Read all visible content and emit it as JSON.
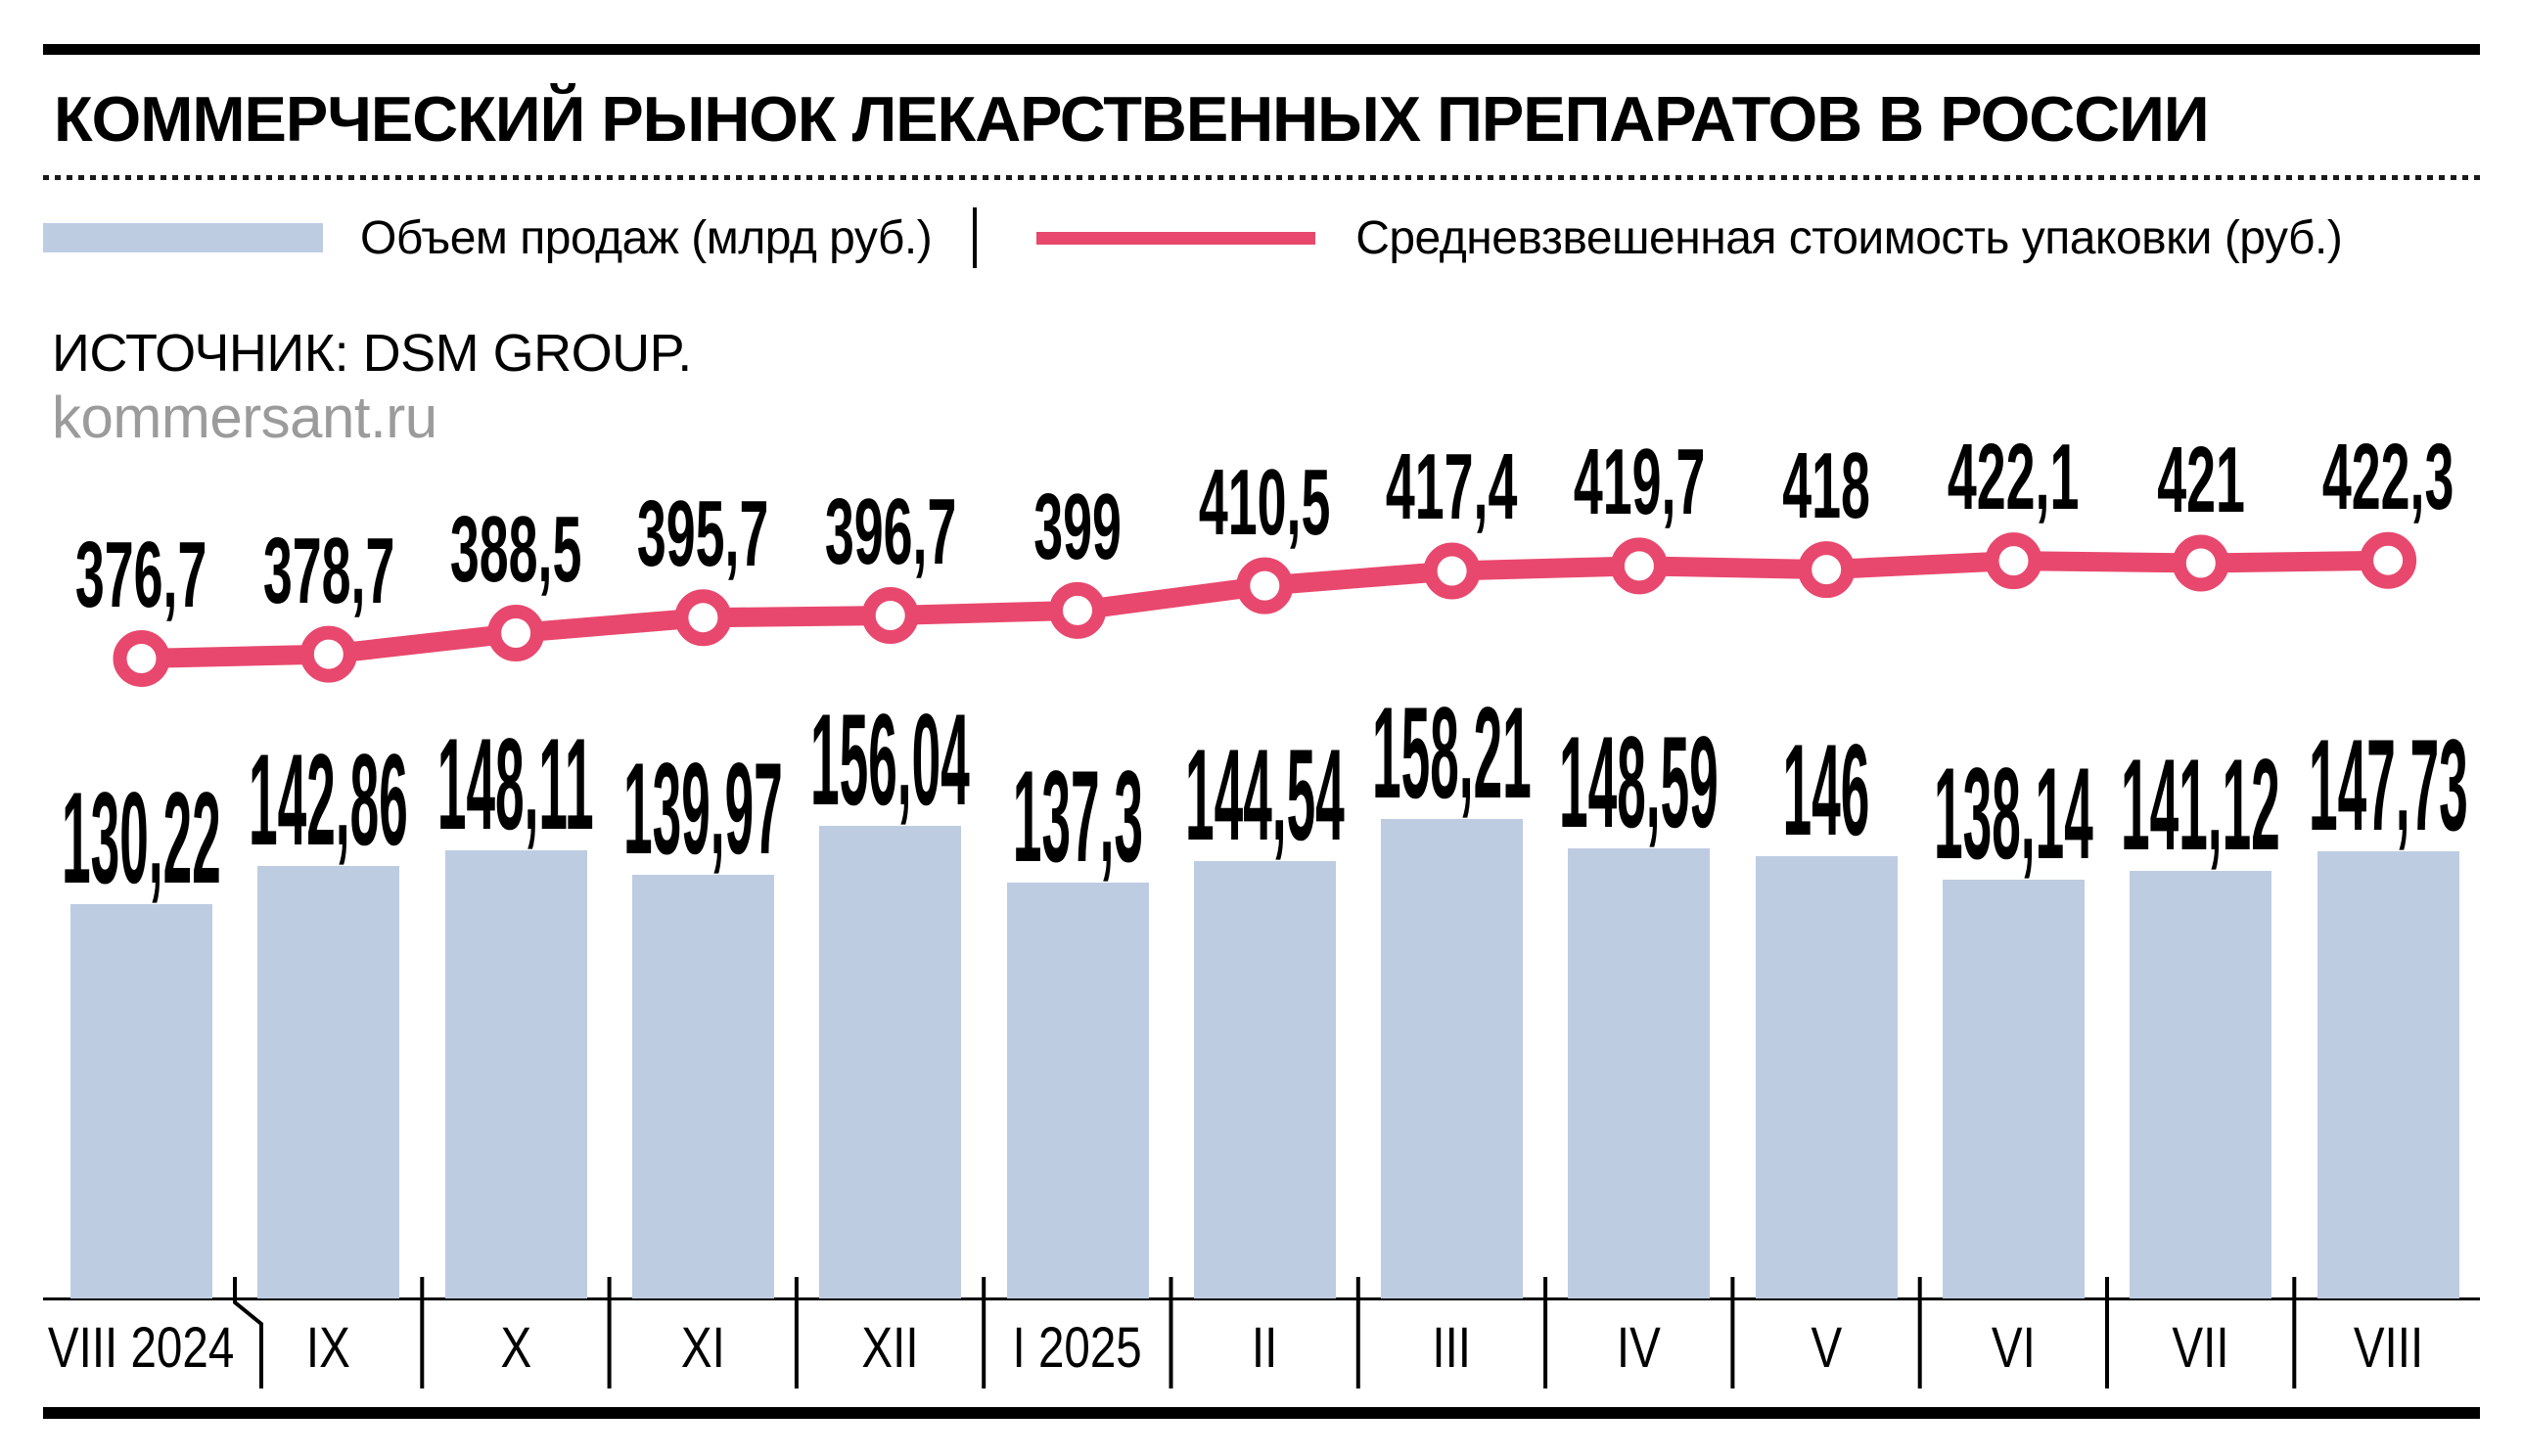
{
  "page": {
    "title": "КОММЕРЧЕСКИЙ РЫНОК ЛЕКАРСТВЕННЫХ ПРЕПАРАТОВ В РОССИИ",
    "source": "ИСТОЧНИК: DSM GROUP.",
    "site": "kommersant.ru",
    "legend_separator": "|",
    "colors": {
      "bar": "#BECCE2",
      "line": "#E8486D",
      "text": "#000000",
      "muted": "#9B9B9B"
    }
  },
  "chart_data": {
    "type": "bar",
    "title": "КОММЕРЧЕСКИЙ РЫНОК ЛЕКАРСТВЕННЫХ ПРЕПАРАТОВ В РОССИИ",
    "categories": [
      "VIII 2024",
      "IX",
      "X",
      "XI",
      "XII",
      "I 2025",
      "II",
      "III",
      "IV",
      "V",
      "VI",
      "VII",
      "VIII"
    ],
    "series": [
      {
        "name": "Объем продаж (млрд руб.)",
        "type": "bar",
        "values": [
          130.22,
          142.86,
          148.11,
          139.97,
          156.04,
          137.3,
          144.54,
          158.21,
          148.59,
          146,
          138.14,
          141.12,
          147.73
        ],
        "labels": [
          "130,22",
          "142,86",
          "148,11",
          "139,97",
          "156,04",
          "137,3",
          "144,54",
          "158,21",
          "148,59",
          "146",
          "138,14",
          "141,12",
          "147,73"
        ]
      },
      {
        "name": "Средневзвешенная стоимость упаковки (руб.)",
        "type": "line",
        "values": [
          376.7,
          378.7,
          388.5,
          395.7,
          396.7,
          399,
          410.5,
          417.4,
          419.7,
          418,
          422.1,
          421,
          422.3
        ],
        "labels": [
          "376,7",
          "378,7",
          "388,5",
          "395,7",
          "396,7",
          "399",
          "410,5",
          "417,4",
          "419,7",
          "418",
          "422,1",
          "421",
          "422,3"
        ]
      }
    ],
    "bar_axis_range": [
      0,
      160
    ],
    "line_axis_range": [
      370,
      425
    ],
    "grid": false,
    "legend_position": "top",
    "data_labels": true
  }
}
